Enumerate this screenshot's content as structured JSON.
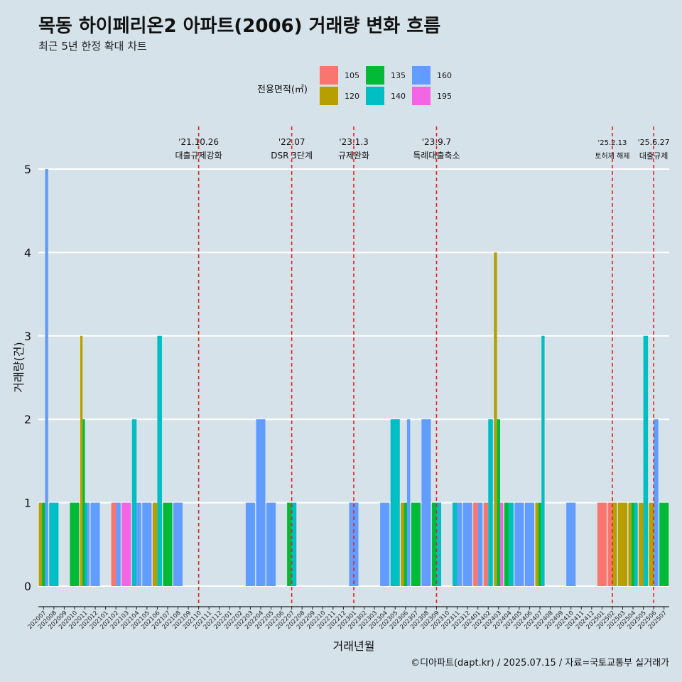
{
  "header": {
    "title": "목동 하이페리온2 아파트(2006) 거래량 변화 흐름",
    "subtitle": "최근 5년 한정 확대 차트"
  },
  "caption": "©디아파트(dapt.kr) / 2025.07.15 / 자료=국토교통부 실거래가",
  "colors": {
    "background": "#d6e2e9",
    "grid": "#ffffff",
    "vline": "#e32222",
    "105": "#f8766d",
    "120": "#b79f00",
    "135": "#00ba38",
    "140": "#00bfc4",
    "160": "#619cff",
    "195": "#f564e3"
  },
  "chart_data": {
    "type": "bar",
    "stacking": "dodge",
    "title": "목동 하이페리온2 아파트(2006) 거래량 변화 흐름",
    "subtitle": "최근 5년 한정 확대 차트",
    "xlabel": "거래년월",
    "ylabel": "거래량(건)",
    "ylim": [
      0,
      5
    ],
    "yticks": [
      0,
      1,
      2,
      3,
      4,
      5
    ],
    "grid": true,
    "legend_title": "전용면적(㎡)",
    "legend_position": "top",
    "categories": [
      "202007",
      "202008",
      "202009",
      "202010",
      "202011",
      "202012",
      "202101",
      "202102",
      "202103",
      "202104",
      "202105",
      "202106",
      "202107",
      "202108",
      "202109",
      "202110",
      "202111",
      "202112",
      "202201",
      "202202",
      "202203",
      "202204",
      "202205",
      "202206",
      "202207",
      "202208",
      "202209",
      "202210",
      "202211",
      "202212",
      "202301",
      "202302",
      "202303",
      "202304",
      "202305",
      "202306",
      "202307",
      "202308",
      "202309",
      "202310",
      "202311",
      "202312",
      "202401",
      "202402",
      "202403",
      "202404",
      "202405",
      "202406",
      "202407",
      "202408",
      "202409",
      "202410",
      "202411",
      "202412",
      "202501",
      "202502",
      "202503",
      "202504",
      "202505",
      "202506",
      "202507"
    ],
    "series": [
      {
        "name": "105",
        "values": [
          0,
          0,
          0,
          0,
          0,
          0,
          0,
          1,
          0,
          0,
          0,
          0,
          0,
          0,
          0,
          0,
          0,
          0,
          0,
          0,
          0,
          0,
          0,
          0,
          0,
          0,
          0,
          0,
          0,
          0,
          0,
          0,
          0,
          0,
          0,
          0,
          0,
          0,
          0,
          0,
          0,
          0,
          1,
          1,
          0,
          0,
          0,
          0,
          0,
          0,
          0,
          0,
          0,
          0,
          1,
          1,
          0,
          0,
          0,
          0,
          0
        ]
      },
      {
        "name": "120",
        "values": [
          1,
          0,
          0,
          0,
          3,
          0,
          0,
          0,
          0,
          0,
          0,
          1,
          0,
          0,
          0,
          0,
          0,
          0,
          0,
          0,
          0,
          0,
          0,
          0,
          0,
          0,
          0,
          0,
          0,
          0,
          0,
          0,
          0,
          0,
          0,
          1,
          0,
          0,
          0,
          0,
          0,
          0,
          0,
          0,
          4,
          0,
          0,
          0,
          1,
          0,
          0,
          0,
          0,
          0,
          0,
          1,
          1,
          1,
          1,
          1,
          0
        ]
      },
      {
        "name": "135",
        "values": [
          1,
          0,
          0,
          1,
          2,
          0,
          0,
          0,
          0,
          0,
          0,
          0,
          1,
          0,
          0,
          0,
          0,
          0,
          0,
          0,
          0,
          0,
          0,
          0,
          1,
          0,
          0,
          0,
          0,
          0,
          0,
          0,
          0,
          0,
          0,
          1,
          1,
          0,
          1,
          0,
          0,
          0,
          0,
          0,
          2,
          1,
          0,
          0,
          1,
          0,
          0,
          0,
          0,
          0,
          0,
          0,
          0,
          1,
          0,
          0,
          1
        ]
      },
      {
        "name": "140",
        "values": [
          0,
          1,
          0,
          0,
          1,
          0,
          0,
          0,
          0,
          2,
          0,
          3,
          0,
          0,
          0,
          0,
          0,
          0,
          0,
          0,
          0,
          0,
          0,
          0,
          1,
          0,
          0,
          0,
          0,
          0,
          0,
          0,
          0,
          0,
          2,
          0,
          0,
          0,
          1,
          0,
          1,
          0,
          0,
          2,
          0,
          1,
          0,
          0,
          3,
          0,
          0,
          0,
          0,
          0,
          0,
          0,
          0,
          1,
          3,
          0,
          0
        ]
      },
      {
        "name": "160",
        "values": [
          5,
          0,
          0,
          0,
          1,
          1,
          0,
          1,
          0,
          1,
          1,
          0,
          0,
          1,
          0,
          0,
          0,
          0,
          0,
          0,
          1,
          2,
          1,
          0,
          0,
          0,
          0,
          0,
          0,
          0,
          1,
          0,
          0,
          1,
          0,
          2,
          0,
          2,
          0,
          0,
          1,
          1,
          1,
          0,
          0,
          0,
          1,
          1,
          0,
          0,
          0,
          1,
          0,
          0,
          0,
          0,
          0,
          0,
          0,
          2,
          0
        ]
      },
      {
        "name": "195",
        "values": [
          0,
          0,
          0,
          0,
          0,
          0,
          0,
          0,
          1,
          0,
          0,
          0,
          0,
          0,
          0,
          0,
          0,
          0,
          0,
          0,
          0,
          0,
          0,
          0,
          0,
          0,
          0,
          0,
          0,
          0,
          0,
          0,
          0,
          0,
          0,
          0,
          0,
          0,
          0,
          0,
          0,
          0,
          0,
          0,
          1,
          0,
          0,
          0,
          0,
          0,
          0,
          0,
          0,
          0,
          0,
          0,
          0,
          0,
          0,
          0,
          0
        ]
      }
    ],
    "annotations": [
      {
        "x": "202110",
        "date": "'21.10.26",
        "label": "대출규제강화"
      },
      {
        "x": "202207",
        "date": "'22.07",
        "label": "DSR 3단계"
      },
      {
        "x": "202301",
        "date": "'23.1.3",
        "label": "규제완화"
      },
      {
        "x": "202309",
        "date": "'23.9.7",
        "label": "특례대출축소"
      },
      {
        "x": "202502",
        "date": "'25.2.13",
        "label": "토허제 해제"
      },
      {
        "x": "202506",
        "date": "'25.6.27",
        "label": "대출규제"
      }
    ]
  }
}
